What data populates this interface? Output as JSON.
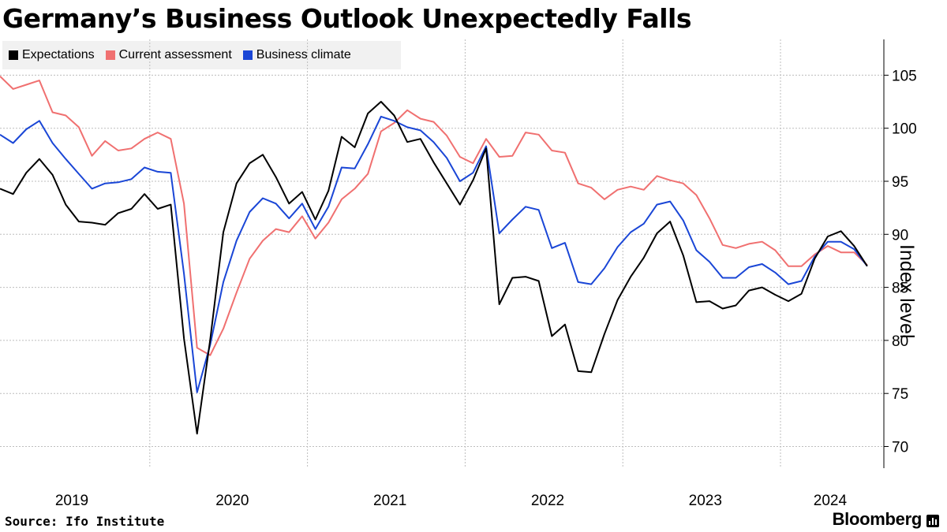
{
  "chart_data": {
    "type": "line",
    "title": "Germany’s Business Outlook Unexpectedly Falls",
    "ylabel": "Index level",
    "xlabel": "",
    "ylim": [
      68,
      108
    ],
    "yticks": [
      70,
      75,
      80,
      85,
      90,
      95,
      100,
      105
    ],
    "x_ticks": [
      "2019",
      "2020",
      "2021",
      "2022",
      "2023",
      "2024"
    ],
    "x_start": "2019-01",
    "source": "Source: Ifo Institute",
    "brand": "Bloomberg",
    "legend_position": "top-left",
    "series": [
      {
        "name": "Expectations",
        "color": "#000000",
        "values": [
          94.3,
          93.8,
          95.8,
          97.1,
          95.6,
          92.8,
          91.2,
          91.1,
          90.9,
          92.0,
          92.4,
          93.8,
          92.4,
          92.8,
          80.2,
          71.2,
          80.1,
          90.2,
          94.8,
          96.7,
          97.5,
          95.4,
          92.9,
          94.0,
          91.4,
          94.1,
          99.2,
          98.2,
          101.4,
          102.5,
          101.2,
          98.7,
          99.0,
          96.8,
          94.8,
          92.8,
          95.1,
          98.1,
          83.4,
          85.9,
          86.0,
          85.6,
          80.4,
          81.5,
          77.1,
          77.0,
          80.6,
          83.8,
          86.0,
          87.8,
          90.1,
          91.2,
          88.0,
          83.6,
          83.7,
          83.0,
          83.3,
          84.7,
          85.0,
          84.3,
          83.7,
          84.4,
          87.7,
          89.8,
          90.3,
          88.9,
          87.0
        ]
      },
      {
        "name": "Current assessment",
        "color": "#f07070",
        "values": [
          104.9,
          103.7,
          104.1,
          104.5,
          101.5,
          101.2,
          100.1,
          97.4,
          98.8,
          97.9,
          98.1,
          99.0,
          99.6,
          99.0,
          92.9,
          79.3,
          78.6,
          81.1,
          84.5,
          87.7,
          89.4,
          90.5,
          90.2,
          91.7,
          89.6,
          91.1,
          93.3,
          94.3,
          95.7,
          99.7,
          100.5,
          101.7,
          100.9,
          100.6,
          99.3,
          97.3,
          96.7,
          99.0,
          97.3,
          97.4,
          99.6,
          99.4,
          97.9,
          97.7,
          94.8,
          94.4,
          93.3,
          94.2,
          94.5,
          94.2,
          95.5,
          95.1,
          94.8,
          93.7,
          91.5,
          89.0,
          88.7,
          89.1,
          89.3,
          88.5,
          87.0,
          87.0,
          88.1,
          88.9,
          88.3,
          88.3,
          87.1
        ]
      },
      {
        "name": "Business climate",
        "color": "#1a46d6",
        "values": [
          99.4,
          98.6,
          99.9,
          100.7,
          98.6,
          97.1,
          95.7,
          94.3,
          94.8,
          94.9,
          95.2,
          96.3,
          95.9,
          95.8,
          86.3,
          75.1,
          79.6,
          85.5,
          89.4,
          92.1,
          93.4,
          92.9,
          91.5,
          92.9,
          90.5,
          92.6,
          96.3,
          96.2,
          98.5,
          101.1,
          100.7,
          100.1,
          99.8,
          98.7,
          97.2,
          95.0,
          95.8,
          98.3,
          90.1,
          91.4,
          92.6,
          92.3,
          88.7,
          89.2,
          85.5,
          85.3,
          86.8,
          88.8,
          90.2,
          91.0,
          92.8,
          93.1,
          91.3,
          88.5,
          87.4,
          85.9,
          85.9,
          86.9,
          87.2,
          86.4,
          85.3,
          85.6,
          87.9,
          89.3,
          89.3,
          88.6,
          87.0
        ]
      }
    ]
  }
}
